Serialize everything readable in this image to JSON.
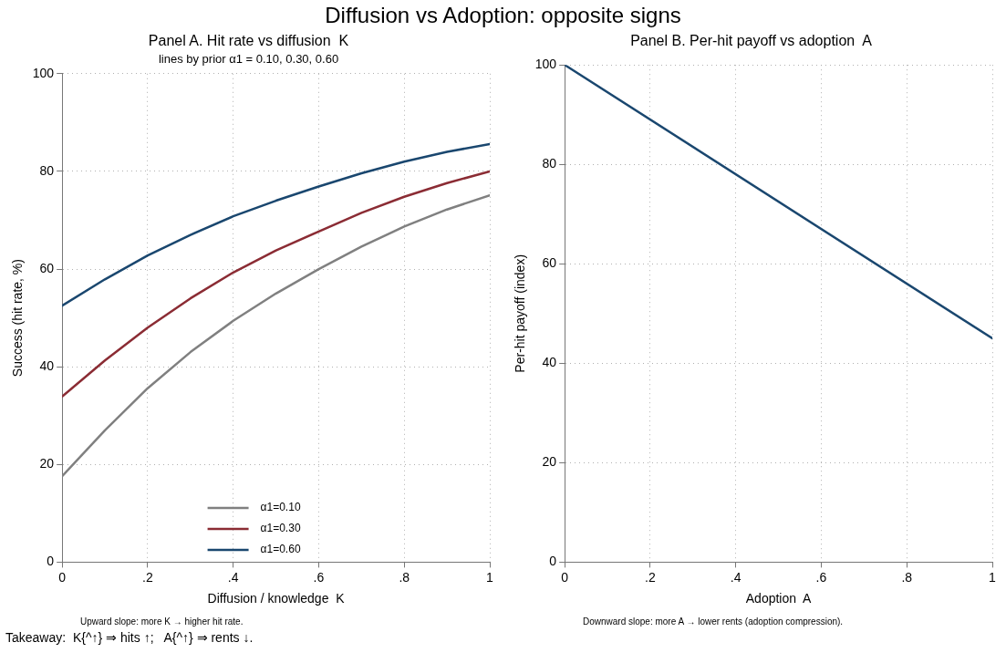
{
  "chart_data": [
    {
      "type": "other",
      "title": "Diffusion vs Adoption: opposite signs",
      "annotations": [
        "Takeaway:  K{^↑} ⇒ hits ↑;   A{^↑} ⇒ rents ↓."
      ]
    },
    {
      "type": "line",
      "title": "Panel A. Hit rate vs diffusion  K",
      "subtitle": "lines by prior α1 = 0.10, 0.30, 0.60",
      "xlabel": "Diffusion / knowledge  K",
      "ylabel": "Success (hit rate, %)",
      "x": [
        0,
        0.1,
        0.2,
        0.3,
        0.4,
        0.5,
        0.6,
        0.7,
        0.8,
        0.9,
        1
      ],
      "series": [
        {
          "name": "α1=0.10",
          "color": "#808080",
          "values": [
            17.6,
            27,
            35.6,
            43,
            49.4,
            55,
            60,
            64.6,
            68.7,
            72.2,
            75.1
          ]
        },
        {
          "name": "α1=0.30",
          "color": "#8b2c34",
          "values": [
            33.9,
            41.3,
            48,
            54,
            59.3,
            63.8,
            67.7,
            71.5,
            74.8,
            77.6,
            80
          ]
        },
        {
          "name": "α1=0.60",
          "color": "#1a476f",
          "values": [
            52.5,
            57.9,
            62.8,
            67,
            70.8,
            74,
            76.9,
            79.6,
            82,
            84,
            85.6
          ]
        }
      ],
      "xlim": [
        0,
        1
      ],
      "xticks": [
        {
          "value": 0,
          "label": "0"
        },
        {
          "value": 0.2,
          "label": ".2"
        },
        {
          "value": 0.4,
          "label": ".4"
        },
        {
          "value": 0.6,
          "label": ".6"
        },
        {
          "value": 0.8,
          "label": ".8"
        },
        1
      ],
      "ylim": [
        0,
        100
      ],
      "yticks": [
        {
          "value": 0,
          "label": "0"
        },
        20,
        40,
        60,
        80,
        100
      ],
      "grid": true,
      "legend": "bottom",
      "marker": "none",
      "line_style": "solid",
      "annotations": [
        "Upward slope: more K → higher hit rate."
      ]
    },
    {
      "type": "line",
      "title": "Panel B. Per-hit payoff vs adoption  A",
      "xlabel": "Adoption  A",
      "ylabel": "Per-hit payoff (index)",
      "x": [
        0,
        1
      ],
      "series": [
        {
          "color": "#1a476f",
          "values": [
            100,
            45
          ]
        }
      ],
      "xlim": [
        0,
        1
      ],
      "xticks": [
        {
          "value": 0,
          "label": "0"
        },
        {
          "value": 0.2,
          "label": ".2"
        },
        {
          "value": 0.4,
          "label": ".4"
        },
        {
          "value": 0.6,
          "label": ".6"
        },
        {
          "value": 0.8,
          "label": ".8"
        },
        1
      ],
      "ylim": [
        0,
        100
      ],
      "yticks": [
        {
          "value": 0,
          "label": "0"
        },
        20,
        40,
        60,
        80,
        100
      ],
      "grid": true,
      "marker": "none",
      "line_style": "solid",
      "annotations": [
        "Downward slope: more A → lower rents (adoption compression)."
      ]
    }
  ]
}
